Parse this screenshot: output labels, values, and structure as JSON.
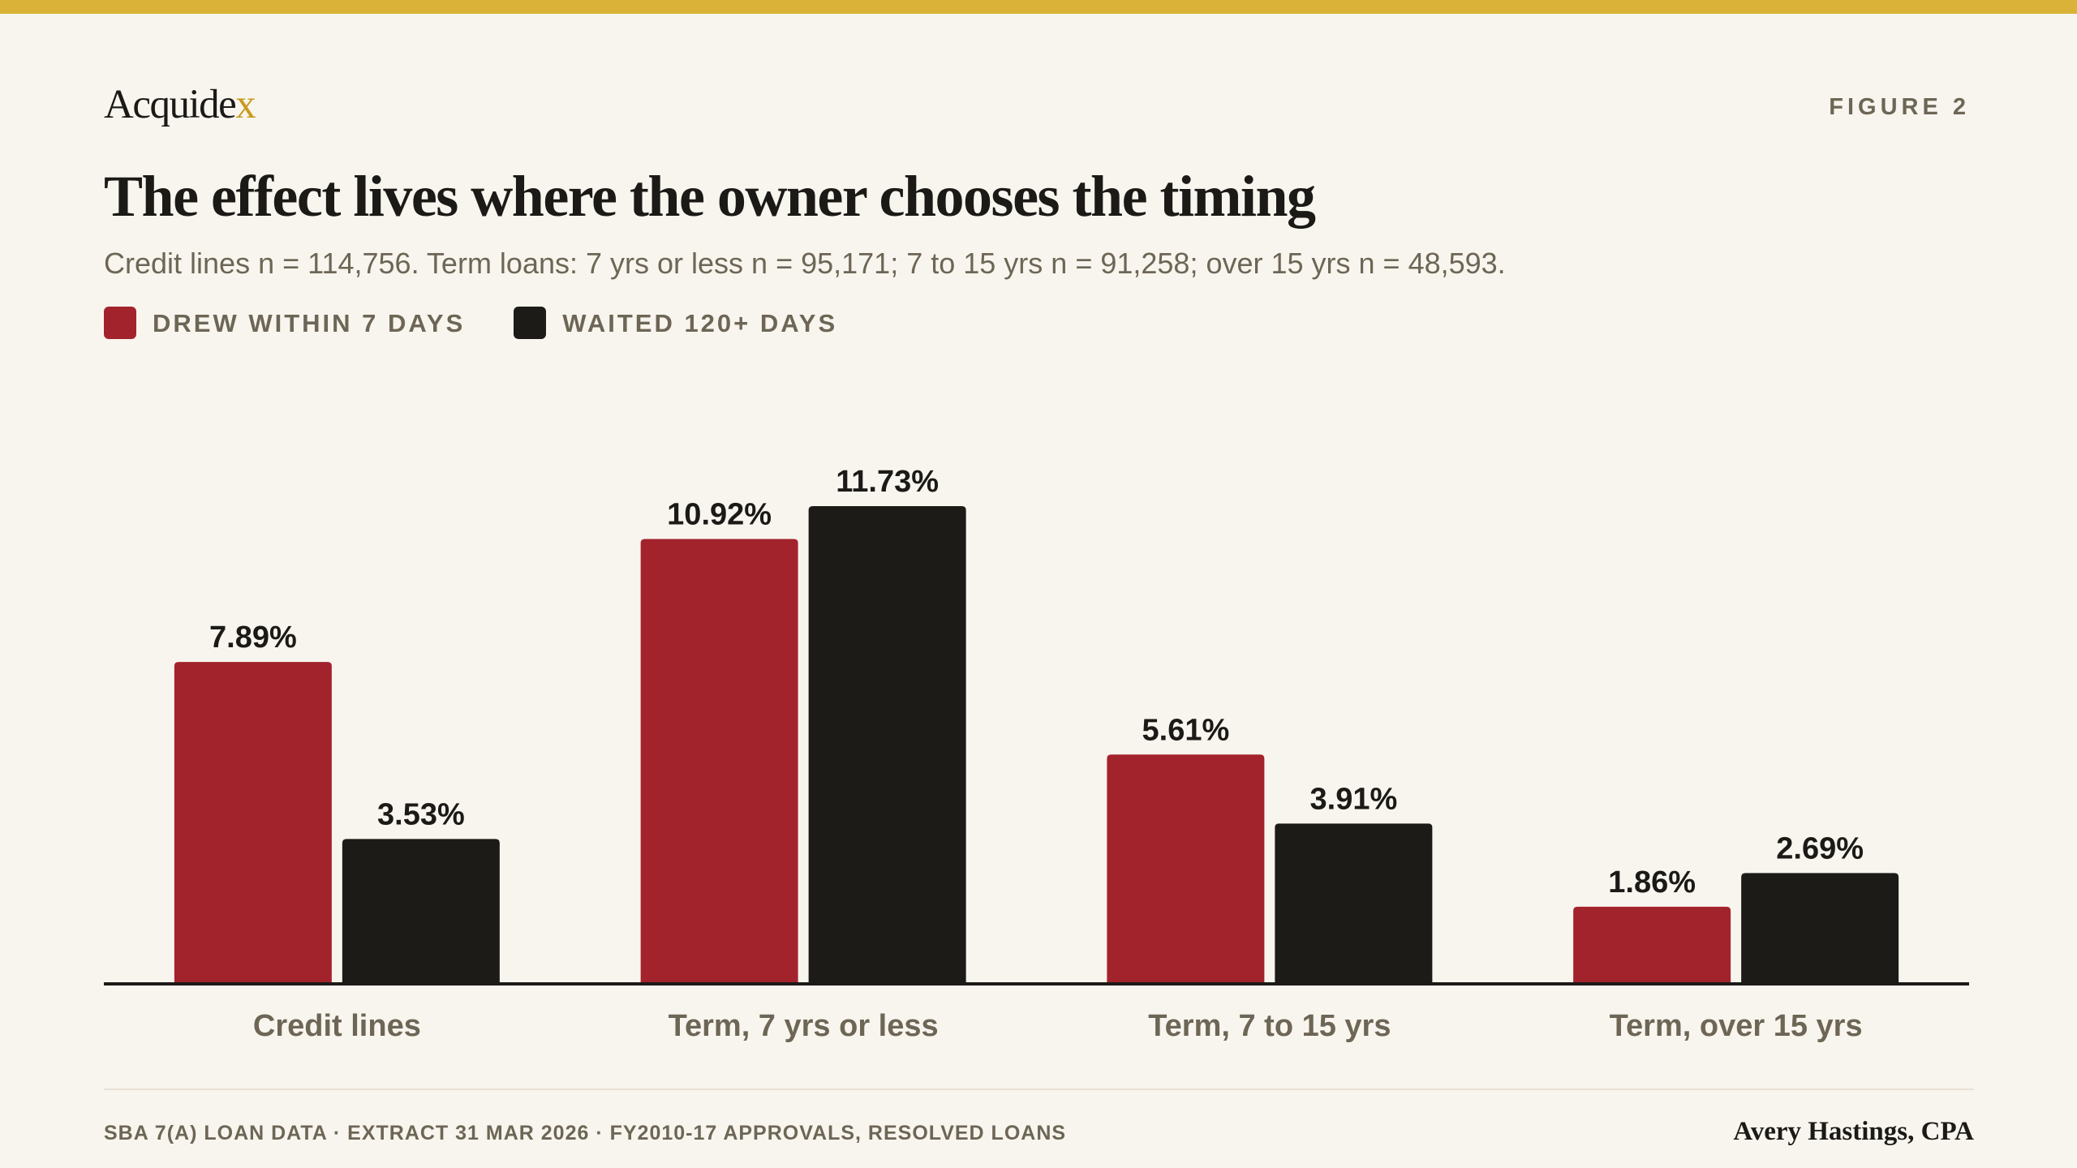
{
  "brand": {
    "name_main": "Acquide",
    "name_accent": "x"
  },
  "figure_label": "FIGURE 2",
  "title": "The effect lives where the owner chooses the timing",
  "subtitle": "Credit lines n = 114,756. Term loans: 7 yrs or less n = 95,171; 7 to 15 yrs n = 91,258; over 15 yrs n = 48,593.",
  "legend": [
    {
      "label": "DREW WITHIN 7 DAYS",
      "color": "#a3232d"
    },
    {
      "label": "WAITED 120+ DAYS",
      "color": "#1c1b17"
    }
  ],
  "footer": {
    "source": "SBA 7(A) LOAN DATA · EXTRACT 31 MAR 2026 · FY2010-17 APPROVALS, RESOLVED LOANS",
    "author": "Avery Hastings, CPA"
  },
  "colors": {
    "accent_bar": "#d9b237",
    "background": "#f8f5ee",
    "muted_text": "#6d6656"
  },
  "chart_data": {
    "type": "bar",
    "title": "The effect lives where the owner chooses the timing",
    "categories": [
      "Credit lines",
      "Term, 7 yrs or less",
      "Term, 7 to 15 yrs",
      "Term, over 15 yrs"
    ],
    "series": [
      {
        "name": "DREW WITHIN 7 DAYS",
        "color": "#a3232d",
        "values": [
          7.89,
          10.92,
          5.61,
          1.86
        ],
        "labels": [
          "7.89%",
          "10.92%",
          "5.61%",
          "1.86%"
        ]
      },
      {
        "name": "WAITED 120+ DAYS",
        "color": "#1c1b17",
        "values": [
          3.53,
          11.73,
          3.91,
          2.69
        ],
        "labels": [
          "3.53%",
          "11.73%",
          "3.91%",
          "2.69%"
        ]
      }
    ],
    "ylim": [
      0,
      11.73
    ],
    "unit": "%",
    "grid": false,
    "legend_position": "top-left"
  }
}
